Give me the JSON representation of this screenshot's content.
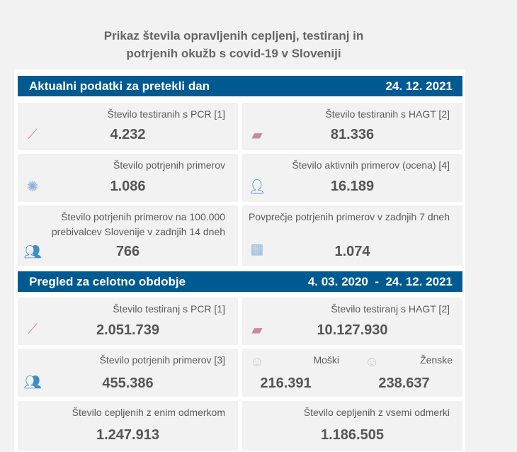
{
  "title": {
    "line1": "Prikaz števila opravljenih cepljenj, testiranj in",
    "line2": "potrjenih okužb s covid-19 v Sloveniji"
  },
  "daily": {
    "header": "Aktualni podatki za pretekli dan",
    "date": "24. 12. 2021",
    "cards": [
      {
        "label": "Število testiranih s PCR [1]",
        "value": "4.232",
        "icon": "test-tube-icon"
      },
      {
        "label": "Število testiranih s HAGT [2]",
        "value": "81.336",
        "icon": "rapid-test-icon"
      },
      {
        "label": "Število potrjenih primerov",
        "value": "1.086",
        "icon": "virus-icon"
      },
      {
        "label": "Število aktivnih primerov (ocena) [4]",
        "value": "16.189",
        "icon": "person-icon"
      },
      {
        "label": "Število potrjenih primerov na 100.000 prebivalcev Slovenije v zadnjih 14 dneh",
        "value": "766",
        "icon": "group-icon"
      },
      {
        "label": "Povprečje potrjenih primerov v zadnjih 7 dneh",
        "value": "1.074",
        "icon": "calendar-icon"
      }
    ]
  },
  "total": {
    "header": "Pregled za celotno obdobje",
    "date_from": "4. 03. 2020",
    "separator": "-",
    "date_to": "24. 12. 2021",
    "cards": [
      {
        "label": "Število testiranj s PCR [1]",
        "value": "2.051.739",
        "icon": "test-tube-icon"
      },
      {
        "label": "Število testiranj s HAGT [2]",
        "value": "10.127.930",
        "icon": "rapid-test-icon"
      },
      {
        "label": "Število potrjenih primerov [3]",
        "value": "455.386",
        "icon": "group-icon"
      },
      {
        "male_label": "Moški",
        "male_value": "216.391",
        "female_label": "Ženske",
        "female_value": "238.637"
      },
      {
        "label": "Število cepljenih z enim odmerkom",
        "value": "1.247.913"
      },
      {
        "label": "Število cepljenih z vsemi odmerki",
        "value": "1.186.505"
      }
    ]
  },
  "colors": {
    "header_bar": "#005a92",
    "card_bg": "#f2f2f2",
    "icon_pink": "#c9899e",
    "icon_blue": "#3c8dc8"
  }
}
